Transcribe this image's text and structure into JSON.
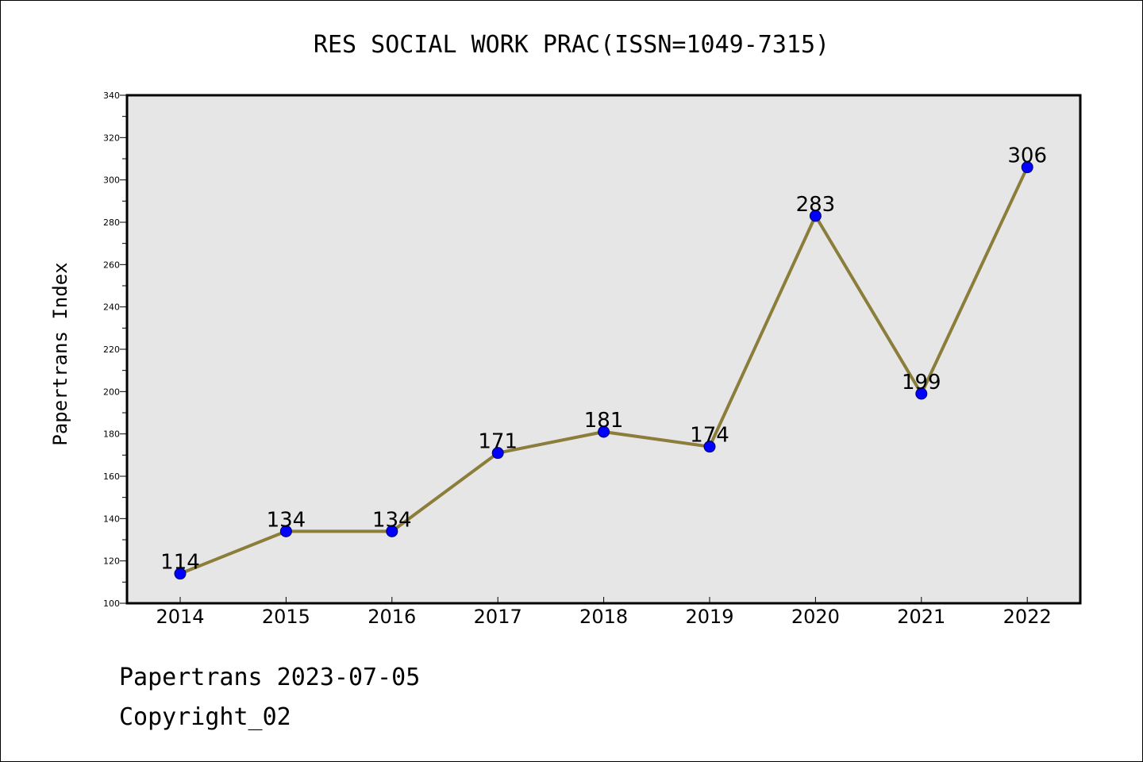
{
  "chart_data": {
    "type": "line",
    "title": "RES SOCIAL WORK PRAC(ISSN=1049-7315)",
    "xlabel": "",
    "ylabel": "Papertrans Index",
    "categories": [
      "2014",
      "2015",
      "2016",
      "2017",
      "2018",
      "2019",
      "2020",
      "2021",
      "2022"
    ],
    "series": [
      {
        "values": [
          114,
          134,
          134,
          171,
          181,
          174,
          283,
          199,
          306
        ]
      }
    ],
    "ylim": [
      100,
      340
    ],
    "yticks": [
      100,
      120,
      140,
      160,
      180,
      200,
      220,
      240,
      260,
      280,
      300,
      320,
      340
    ],
    "grid": false,
    "legend": "none",
    "colors": {
      "line": "#8b7d3a",
      "marker": "#0000ff",
      "marker_edge": "#000066",
      "plot_bg": "#e6e6e6"
    }
  },
  "footer": {
    "line1": "Papertrans 2023-07-05",
    "line2": "Copyright_02"
  }
}
